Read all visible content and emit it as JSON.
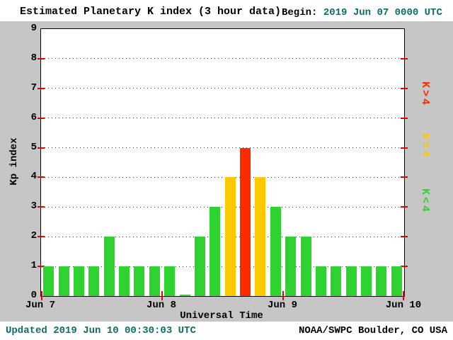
{
  "header": {
    "title": "Estimated Planetary K index (3 hour data)",
    "begin_label": "Begin:",
    "begin_value": "2019 Jun 07 0000 UTC"
  },
  "footer": {
    "updated": "Updated 2019 Jun 10 00:30:03 UTC",
    "credit": "NOAA/SWPC Boulder, CO USA"
  },
  "colors": {
    "background_gray": "#c6c6c6",
    "plot_background": "#ffffff",
    "tick_red": "#e60000",
    "timestamp_teal": "#0c6e66",
    "bar_green": "#2fd32f",
    "bar_yellow": "#ffc800",
    "bar_red": "#ff2b00"
  },
  "chart_data": {
    "type": "bar",
    "title": "Estimated Planetary K index (3 hour data)",
    "xlabel": "Universal Time",
    "ylabel": "Kp index",
    "ylim": [
      0,
      9
    ],
    "yticks": [
      0,
      1,
      2,
      3,
      4,
      5,
      6,
      7,
      8,
      9
    ],
    "grid": "horizontal dotted lines at each integer Kp value",
    "bin_hours": 3,
    "begin": "2019 Jun 07 0000 UTC",
    "x_day_labels": [
      "Jun 7",
      "Jun 8",
      "Jun 9",
      "Jun 10"
    ],
    "values": [
      1,
      1,
      1,
      1,
      2,
      1,
      1,
      1,
      1,
      0,
      2,
      3,
      4,
      5,
      4,
      3,
      2,
      2,
      1,
      1,
      1,
      1,
      1,
      1
    ],
    "color_rule": "green if K<4, yellow if K=4, red if K>4",
    "legend_position": "right, rotated 90deg",
    "legend": [
      {
        "label": "K>4",
        "color": "#ff2b00"
      },
      {
        "label": "K=4",
        "color": "#ffc800"
      },
      {
        "label": "K<4",
        "color": "#2fd32f"
      }
    ]
  }
}
